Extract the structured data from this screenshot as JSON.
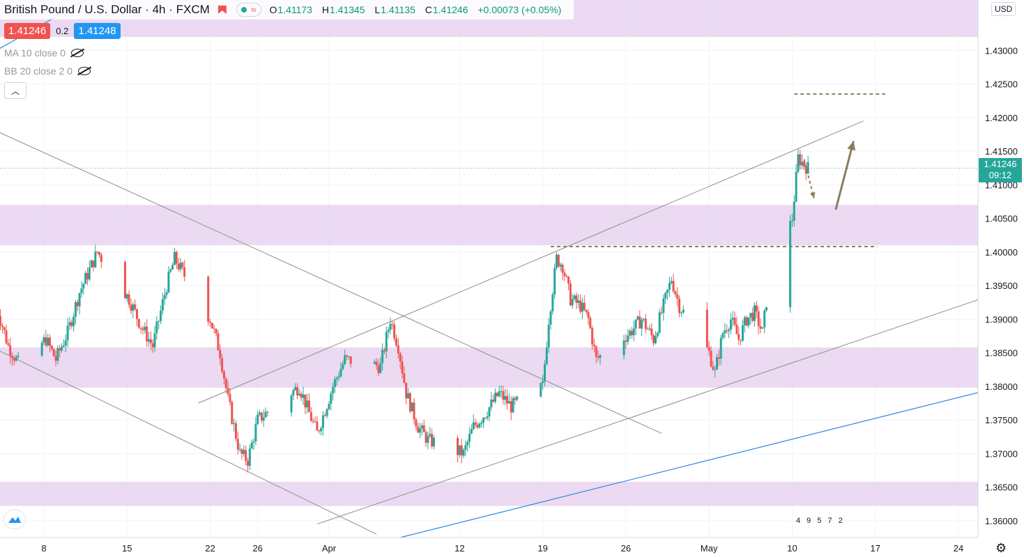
{
  "header": {
    "symbol": "British Pound / U.S. Dollar",
    "interval": "4h",
    "exchange": "FXCM",
    "ohlc": {
      "o_label": "O",
      "o": "1.41173",
      "h_label": "H",
      "h": "1.41345",
      "l_label": "L",
      "l": "1.41135",
      "c_label": "C",
      "c": "1.41246",
      "change": "+0.00073 (+0.05%)"
    },
    "sell_price": "1.41246",
    "spread": "0.2",
    "buy_price": "1.41248",
    "indicators": [
      "MA 10 close 0",
      "BB 20 close 2 0"
    ],
    "currency": "USD"
  },
  "last_price": {
    "price": "1.41246",
    "countdown": "09:12"
  },
  "events_label": "4 9  5  7 2",
  "colors": {
    "up": "#26a69a",
    "down": "#ef5350",
    "zone": "#e8d3ee",
    "trend_blue": "#2e86de",
    "channel": "#8c8c8c",
    "annotation": "#8b7d5e"
  },
  "icons": {
    "eye": "eye-off-icon",
    "collapse": "chevron-up-icon",
    "logo": "tradingview-logo-icon",
    "settings": "gear-icon"
  },
  "chart_data": {
    "type": "candlestick",
    "pair": "GBPUSD",
    "interval": "4h",
    "ylim": [
      1.3575,
      1.4375
    ],
    "yticks": [
      1.36,
      1.365,
      1.37,
      1.375,
      1.38,
      1.385,
      1.39,
      1.395,
      1.4,
      1.405,
      1.41,
      1.415,
      1.42,
      1.425,
      1.43
    ],
    "xticks": [
      {
        "label": "8",
        "date": "2021-03-08"
      },
      {
        "label": "15",
        "date": "2021-03-15"
      },
      {
        "label": "22",
        "date": "2021-03-22"
      },
      {
        "label": "26",
        "date": "2021-03-26"
      },
      {
        "label": "Apr",
        "date": "2021-04-01"
      },
      {
        "label": "12",
        "date": "2021-04-12"
      },
      {
        "label": "19",
        "date": "2021-04-19"
      },
      {
        "label": "26",
        "date": "2021-04-26"
      },
      {
        "label": "May",
        "date": "2021-05-03"
      },
      {
        "label": "10",
        "date": "2021-05-10"
      },
      {
        "label": "17",
        "date": "2021-05-17"
      },
      {
        "label": "24",
        "date": "2021-05-24"
      }
    ],
    "zones": [
      [
        1.432,
        1.4375
      ],
      [
        1.401,
        1.407
      ],
      [
        1.3798,
        1.3858
      ],
      [
        1.3622,
        1.3658
      ]
    ],
    "path": [
      [
        "2021-03-04T00:00",
        1.392
      ],
      [
        "2021-03-05T00:00",
        1.386
      ],
      [
        "2021-03-06T00:00",
        1.383
      ],
      [
        "2021-03-08T04:00",
        1.387
      ],
      [
        "2021-03-09T00:00",
        1.384
      ],
      [
        "2021-03-10T00:00",
        1.388
      ],
      [
        "2021-03-11T00:00",
        1.394
      ],
      [
        "2021-03-12T12:00",
        1.4
      ],
      [
        "2021-03-15T04:00",
        1.393
      ],
      [
        "2021-03-16T04:00",
        1.389
      ],
      [
        "2021-03-17T04:00",
        1.386
      ],
      [
        "2021-03-18T08:00",
        1.395
      ],
      [
        "2021-03-19T00:00",
        1.399
      ],
      [
        "2021-03-22T00:00",
        1.39
      ],
      [
        "2021-03-22T20:00",
        1.385
      ],
      [
        "2021-03-23T12:00",
        1.378
      ],
      [
        "2021-03-24T12:00",
        1.37
      ],
      [
        "2021-03-25T04:00",
        1.369
      ],
      [
        "2021-03-26T00:00",
        1.375
      ],
      [
        "2021-03-29T12:00",
        1.38
      ],
      [
        "2021-03-30T08:00",
        1.376
      ],
      [
        "2021-03-31T00:00",
        1.373
      ],
      [
        "2021-04-01T08:00",
        1.38
      ],
      [
        "2021-04-02T08:00",
        1.384
      ],
      [
        "2021-04-05T08:00",
        1.383
      ],
      [
        "2021-04-06T04:00",
        1.39
      ],
      [
        "2021-04-06T20:00",
        1.386
      ],
      [
        "2021-04-07T12:00",
        1.379
      ],
      [
        "2021-04-08T12:00",
        1.374
      ],
      [
        "2021-04-09T08:00",
        1.372
      ],
      [
        "2021-04-12T08:00",
        1.37
      ],
      [
        "2021-04-13T04:00",
        1.374
      ],
      [
        "2021-04-14T04:00",
        1.376
      ],
      [
        "2021-04-15T08:00",
        1.379
      ],
      [
        "2021-04-16T08:00",
        1.377
      ],
      [
        "2021-04-19T00:00",
        1.38
      ],
      [
        "2021-04-19T12:00",
        1.39
      ],
      [
        "2021-04-20T04:00",
        1.399
      ],
      [
        "2021-04-20T16:00",
        1.398
      ],
      [
        "2021-04-21T08:00",
        1.393
      ],
      [
        "2021-04-22T04:00",
        1.392
      ],
      [
        "2021-04-22T20:00",
        1.39
      ],
      [
        "2021-04-23T12:00",
        1.384
      ],
      [
        "2021-04-26T08:00",
        1.388
      ],
      [
        "2021-04-27T08:00",
        1.39
      ],
      [
        "2021-04-28T08:00",
        1.387
      ],
      [
        "2021-04-29T08:00",
        1.393
      ],
      [
        "2021-04-29T20:00",
        1.396
      ],
      [
        "2021-04-30T12:00",
        1.392
      ],
      [
        "2021-05-03T00:00",
        1.385
      ],
      [
        "2021-05-03T12:00",
        1.382
      ],
      [
        "2021-05-04T04:00",
        1.388
      ],
      [
        "2021-05-04T20:00",
        1.39
      ],
      [
        "2021-05-05T12:00",
        1.387
      ],
      [
        "2021-05-06T04:00",
        1.39
      ],
      [
        "2021-05-06T20:00",
        1.391
      ],
      [
        "2021-05-07T12:00",
        1.388
      ],
      [
        "2021-05-08T00:00",
        1.395
      ],
      [
        "2021-05-09T04:00",
        1.4
      ],
      [
        "2021-05-10T00:00",
        1.405
      ],
      [
        "2021-05-10T12:00",
        1.414
      ],
      [
        "2021-05-11T00:00",
        1.413
      ],
      [
        "2021-05-11T08:00",
        1.41246
      ]
    ],
    "lines": [
      {
        "role": "outer-trend-upper",
        "from": [
          "2021-03-04T00:00",
          1.43
        ],
        "to": [
          "2021-03-12T00:00",
          1.438
        ]
      },
      {
        "role": "outer-trend-lower",
        "from": [
          "2021-04-07T00:00",
          1.3575
        ],
        "to": [
          "2021-05-30T00:00",
          1.381
        ]
      },
      {
        "role": "descending-upper",
        "from": [
          "2021-03-04T00:00",
          1.418
        ],
        "to": [
          "2021-04-29T00:00",
          1.373
        ]
      },
      {
        "role": "descending-lower",
        "from": [
          "2021-03-04T00:00",
          1.3855
        ],
        "to": [
          "2021-04-05T00:00",
          1.358
        ]
      },
      {
        "role": "ascending-upper",
        "from": [
          "2021-03-21T00:00",
          1.3775
        ],
        "to": [
          "2021-05-16T00:00",
          1.4195
        ]
      },
      {
        "role": "ascending-lower",
        "from": [
          "2021-03-31T00:00",
          1.3595
        ],
        "to": [
          "2021-05-30T00:00",
          1.3955
        ]
      }
    ],
    "levels": [
      {
        "price": 1.4235,
        "from": "2021-05-10T04:00",
        "to": "2021-05-17T20:00"
      },
      {
        "price": 1.4008,
        "from": "2021-04-19T16:00",
        "to": "2021-05-17T04:00"
      }
    ],
    "arrows": [
      {
        "style": "dashed",
        "from": [
          "2021-05-11T00:00",
          1.4138
        ],
        "to": [
          "2021-05-11T20:00",
          1.408
        ]
      },
      {
        "style": "solid",
        "from": [
          "2021-05-13T16:00",
          1.4063
        ],
        "to": [
          "2021-05-15T04:00",
          1.4165
        ]
      }
    ]
  }
}
